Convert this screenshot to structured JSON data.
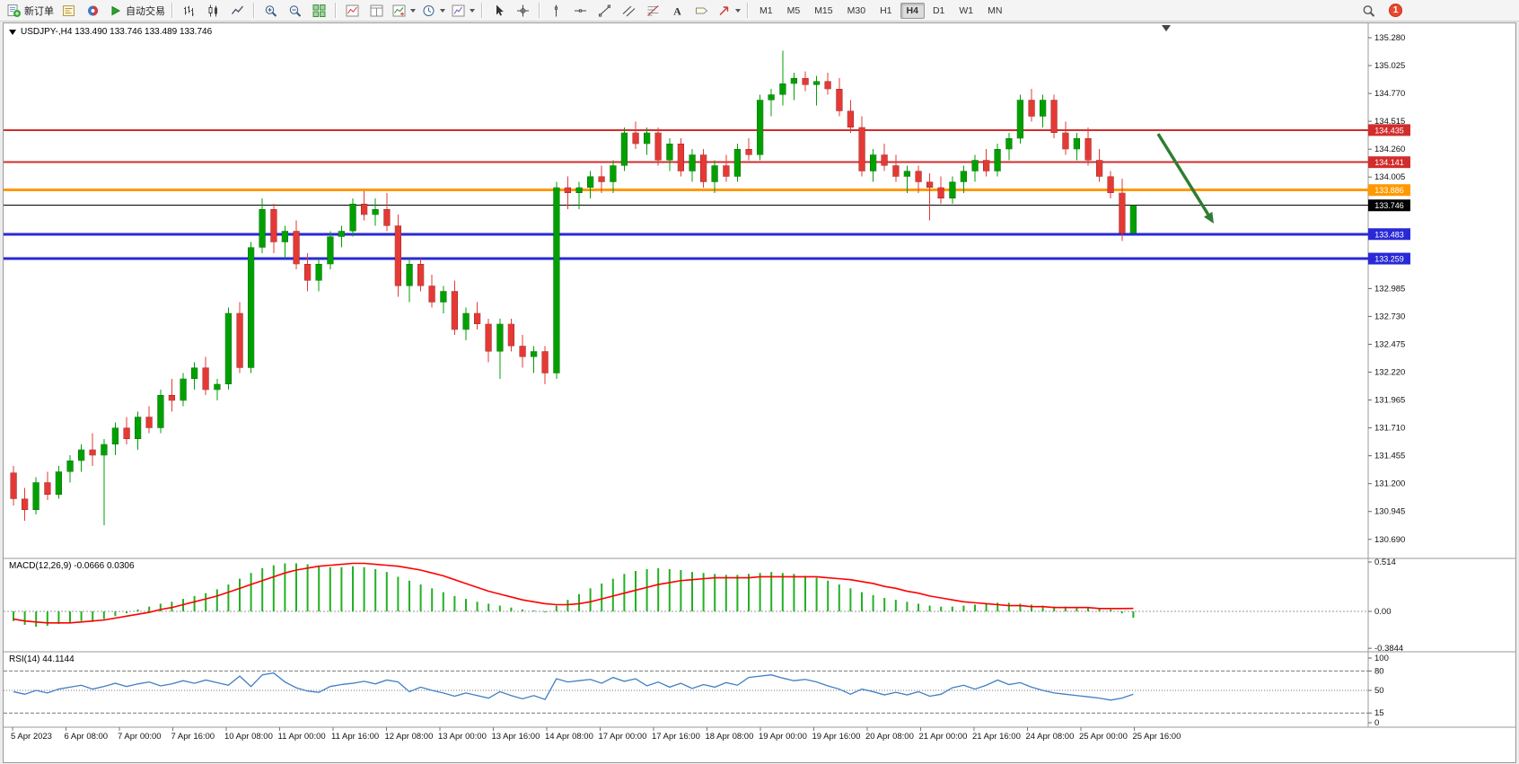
{
  "toolbar": {
    "badge": "1",
    "timeframes": [
      "M1",
      "M5",
      "M15",
      "M30",
      "H1",
      "H4",
      "D1",
      "W1",
      "MN"
    ],
    "active_timeframe": "H4",
    "groups": [
      {
        "items": [
          {
            "name": "new-order-button",
            "icon": "new-order-icon",
            "label": "新订单"
          },
          {
            "name": "market-depth-button",
            "icon": "market-depth-icon"
          },
          {
            "name": "community-button",
            "icon": "community-icon"
          },
          {
            "name": "auto-trading-button",
            "icon": "autotrade-icon",
            "label": "自动交易"
          }
        ]
      },
      {
        "items": [
          {
            "name": "bar-chart-button",
            "icon": "bar-chart-icon"
          },
          {
            "name": "candlestick-chart-button",
            "icon": "candlestick-icon"
          },
          {
            "name": "line-chart-button",
            "icon": "line-chart-icon"
          }
        ]
      },
      {
        "items": [
          {
            "name": "zoom-in-button",
            "icon": "zoom-in-icon"
          },
          {
            "name": "zoom-out-button",
            "icon": "zoom-out-icon"
          },
          {
            "name": "tile-windows-button",
            "icon": "tile-windows-icon"
          }
        ]
      },
      {
        "items": [
          {
            "name": "indicator-window-button",
            "icon": "indicator-window-icon"
          },
          {
            "name": "data-window-button",
            "icon": "data-window-icon"
          },
          {
            "name": "add-indicator-button",
            "icon": "add-indicator-icon",
            "caret": true
          },
          {
            "name": "period-button",
            "icon": "period-icon",
            "caret": true
          },
          {
            "name": "template-button",
            "icon": "template-icon",
            "caret": true
          }
        ]
      },
      {
        "items": [
          {
            "name": "cursor-button",
            "icon": "cursor-icon"
          },
          {
            "name": "crosshair-button",
            "icon": "crosshair-icon"
          }
        ]
      },
      {
        "items": [
          {
            "name": "vline-button",
            "icon": "vline-icon"
          },
          {
            "name": "hline-button",
            "icon": "hline-icon"
          },
          {
            "name": "trendline-button",
            "icon": "trendline-icon"
          },
          {
            "name": "channel-button",
            "icon": "channel-icon"
          },
          {
            "name": "fibonacci-button",
            "icon": "fibonacci-icon"
          },
          {
            "name": "text-button",
            "icon": "text-icon",
            "glyph": "A"
          },
          {
            "name": "label-button",
            "icon": "label-icon"
          },
          {
            "name": "arrow-tools-button",
            "icon": "arrow-tools-icon",
            "caret": true
          }
        ]
      }
    ]
  },
  "chart_data": {
    "type": "candlestick",
    "symbol": "USDJPY-",
    "timeframe": "H4",
    "title": "USDJPY-,H4 133.490 133.746 133.489 133.746",
    "price_range": {
      "max": 135.28,
      "min": 130.68
    },
    "price_axis_labels": [
      "135.280",
      "135.025",
      "134.770",
      "134.515",
      "134.260",
      "134.005",
      "132.985",
      "132.730",
      "132.475",
      "132.220",
      "131.965",
      "131.710",
      "131.455",
      "131.200",
      "130.945",
      "130.690"
    ],
    "levels": [
      {
        "price": 134.435,
        "label": "134.435",
        "color": "#d22d2d",
        "width": 2
      },
      {
        "price": 134.141,
        "label": "134.141",
        "color": "#d22d2d",
        "width": 2
      },
      {
        "price": 133.886,
        "label": "133.886",
        "color": "#ff9900",
        "width": 3
      },
      {
        "price": 133.746,
        "label": "133.746",
        "color": "#000000",
        "width": 1,
        "current": true
      },
      {
        "price": 133.483,
        "label": "133.483",
        "color": "#2929d6",
        "width": 3
      },
      {
        "price": 133.259,
        "label": "133.259",
        "color": "#2929d6",
        "width": 3
      }
    ],
    "colors": {
      "up": "#00a000",
      "down": "#e53935",
      "macd_hist": "#22b122",
      "macd_signal": "#ff0000",
      "rsi": "#3f7fc4"
    },
    "arrow": {
      "color": "#2e7d32",
      "from_price": 134.4,
      "to_price": 133.58
    },
    "time_labels": [
      "5 Apr 2023",
      "6 Apr 08:00",
      "7 Apr 00:00",
      "7 Apr 16:00",
      "10 Apr 08:00",
      "11 Apr 00:00",
      "11 Apr 16:00",
      "12 Apr 08:00",
      "13 Apr 00:00",
      "13 Apr 16:00",
      "14 Apr 08:00",
      "17 Apr 00:00",
      "17 Apr 16:00",
      "18 Apr 08:00",
      "19 Apr 00:00",
      "19 Apr 16:00",
      "20 Apr 08:00",
      "21 Apr 00:00",
      "21 Apr 16:00",
      "24 Apr 08:00",
      "25 Apr 00:00",
      "25 Apr 16:00"
    ],
    "candles": [
      [
        131.3,
        131.36,
        131.0,
        131.06
      ],
      [
        131.06,
        131.16,
        130.86,
        130.96
      ],
      [
        130.96,
        131.26,
        130.92,
        131.21
      ],
      [
        131.21,
        131.31,
        131.05,
        131.1
      ],
      [
        131.1,
        131.36,
        131.06,
        131.31
      ],
      [
        131.31,
        131.46,
        131.21,
        131.41
      ],
      [
        131.41,
        131.56,
        131.31,
        131.51
      ],
      [
        131.51,
        131.66,
        131.36,
        131.46
      ],
      [
        131.46,
        131.61,
        130.82,
        131.56
      ],
      [
        131.56,
        131.76,
        131.46,
        131.71
      ],
      [
        131.71,
        131.81,
        131.56,
        131.61
      ],
      [
        131.61,
        131.86,
        131.51,
        131.81
      ],
      [
        131.81,
        131.91,
        131.66,
        131.71
      ],
      [
        131.71,
        132.06,
        131.66,
        132.01
      ],
      [
        132.01,
        132.16,
        131.86,
        131.96
      ],
      [
        131.96,
        132.21,
        131.91,
        132.16
      ],
      [
        132.16,
        132.31,
        132.06,
        132.26
      ],
      [
        132.26,
        132.36,
        132.01,
        132.06
      ],
      [
        132.06,
        132.16,
        131.96,
        132.11
      ],
      [
        132.11,
        132.81,
        132.06,
        132.76
      ],
      [
        132.76,
        132.86,
        132.21,
        132.26
      ],
      [
        132.26,
        133.41,
        132.21,
        133.36
      ],
      [
        133.36,
        133.81,
        133.31,
        133.71
      ],
      [
        133.71,
        133.76,
        133.31,
        133.41
      ],
      [
        133.41,
        133.56,
        133.26,
        133.51
      ],
      [
        133.51,
        133.61,
        133.16,
        133.21
      ],
      [
        133.21,
        133.31,
        132.96,
        133.06
      ],
      [
        133.06,
        133.26,
        132.96,
        133.21
      ],
      [
        133.21,
        133.51,
        133.16,
        133.46
      ],
      [
        133.46,
        133.56,
        133.36,
        133.51
      ],
      [
        133.51,
        133.81,
        133.46,
        133.76
      ],
      [
        133.76,
        133.88,
        133.61,
        133.66
      ],
      [
        133.66,
        133.81,
        133.56,
        133.71
      ],
      [
        133.71,
        133.86,
        133.51,
        133.56
      ],
      [
        133.56,
        133.66,
        132.91,
        133.01
      ],
      [
        133.01,
        133.26,
        132.86,
        133.21
      ],
      [
        133.21,
        133.26,
        132.96,
        133.01
      ],
      [
        133.01,
        133.11,
        132.81,
        132.86
      ],
      [
        132.86,
        133.01,
        132.76,
        132.96
      ],
      [
        132.96,
        133.06,
        132.56,
        132.61
      ],
      [
        132.61,
        132.81,
        132.51,
        132.76
      ],
      [
        132.76,
        132.86,
        132.61,
        132.66
      ],
      [
        132.66,
        132.71,
        132.31,
        132.41
      ],
      [
        132.41,
        132.71,
        132.16,
        132.66
      ],
      [
        132.66,
        132.71,
        132.41,
        132.46
      ],
      [
        132.46,
        132.56,
        132.26,
        132.36
      ],
      [
        132.36,
        132.46,
        132.21,
        132.41
      ],
      [
        132.41,
        132.46,
        132.11,
        132.21
      ],
      [
        132.21,
        133.96,
        132.16,
        133.91
      ],
      [
        133.91,
        134.01,
        133.71,
        133.86
      ],
      [
        133.86,
        133.96,
        133.71,
        133.91
      ],
      [
        133.91,
        134.06,
        133.81,
        134.01
      ],
      [
        134.01,
        134.11,
        133.86,
        133.96
      ],
      [
        133.96,
        134.16,
        133.86,
        134.11
      ],
      [
        134.11,
        134.46,
        134.06,
        134.41
      ],
      [
        134.41,
        134.51,
        134.26,
        134.31
      ],
      [
        134.31,
        134.46,
        134.21,
        134.41
      ],
      [
        134.41,
        134.46,
        134.11,
        134.16
      ],
      [
        134.16,
        134.36,
        134.06,
        134.31
      ],
      [
        134.31,
        134.36,
        134.01,
        134.06
      ],
      [
        134.06,
        134.26,
        133.96,
        134.21
      ],
      [
        134.21,
        134.26,
        133.91,
        133.96
      ],
      [
        133.96,
        134.16,
        133.86,
        134.11
      ],
      [
        134.11,
        134.21,
        133.96,
        134.01
      ],
      [
        134.01,
        134.31,
        133.96,
        134.26
      ],
      [
        134.26,
        134.36,
        134.16,
        134.21
      ],
      [
        134.21,
        134.76,
        134.16,
        134.71
      ],
      [
        134.71,
        134.81,
        134.56,
        134.76
      ],
      [
        134.76,
        135.16,
        134.66,
        134.86
      ],
      [
        134.86,
        134.96,
        134.71,
        134.91
      ],
      [
        134.91,
        134.97,
        134.79,
        134.85
      ],
      [
        134.85,
        134.93,
        134.66,
        134.88
      ],
      [
        134.88,
        134.96,
        134.76,
        134.81
      ],
      [
        134.81,
        134.91,
        134.56,
        134.61
      ],
      [
        134.61,
        134.71,
        134.41,
        134.46
      ],
      [
        134.46,
        134.56,
        134.01,
        134.06
      ],
      [
        134.06,
        134.26,
        133.96,
        134.21
      ],
      [
        134.21,
        134.31,
        134.06,
        134.11
      ],
      [
        134.11,
        134.21,
        133.96,
        134.01
      ],
      [
        134.01,
        134.11,
        133.86,
        134.06
      ],
      [
        134.06,
        134.11,
        133.86,
        133.96
      ],
      [
        133.96,
        134.04,
        133.61,
        133.91
      ],
      [
        133.91,
        134.01,
        133.76,
        133.81
      ],
      [
        133.81,
        134.01,
        133.76,
        133.96
      ],
      [
        133.96,
        134.11,
        133.86,
        134.06
      ],
      [
        134.06,
        134.21,
        133.96,
        134.16
      ],
      [
        134.16,
        134.26,
        134.01,
        134.06
      ],
      [
        134.06,
        134.31,
        134.01,
        134.26
      ],
      [
        134.26,
        134.41,
        134.16,
        134.36
      ],
      [
        134.36,
        134.76,
        134.31,
        134.71
      ],
      [
        134.71,
        134.81,
        134.51,
        134.56
      ],
      [
        134.56,
        134.76,
        134.46,
        134.71
      ],
      [
        134.71,
        134.76,
        134.36,
        134.41
      ],
      [
        134.41,
        134.51,
        134.21,
        134.26
      ],
      [
        134.26,
        134.41,
        134.16,
        134.36
      ],
      [
        134.36,
        134.46,
        134.11,
        134.16
      ],
      [
        134.16,
        134.26,
        133.96,
        134.01
      ],
      [
        134.01,
        134.06,
        133.81,
        133.86
      ],
      [
        133.86,
        133.99,
        133.42,
        133.49
      ],
      [
        133.49,
        133.746,
        133.489,
        133.746
      ]
    ],
    "indicators": {
      "macd": {
        "label": "MACD(12,26,9) -0.0666 0.0306",
        "axis": [
          {
            "value": 0.514,
            "text": "0.514"
          },
          {
            "value": 0,
            "text": "0.00"
          },
          {
            "value": -0.3844,
            "text": "-0.3844"
          }
        ],
        "histogram": [
          -0.1,
          -0.14,
          -0.16,
          -0.15,
          -0.13,
          -0.12,
          -0.1,
          -0.11,
          -0.08,
          -0.05,
          -0.02,
          0.02,
          0.05,
          0.08,
          0.1,
          0.13,
          0.16,
          0.19,
          0.23,
          0.28,
          0.34,
          0.4,
          0.45,
          0.48,
          0.5,
          0.5,
          0.49,
          0.47,
          0.46,
          0.46,
          0.47,
          0.46,
          0.44,
          0.41,
          0.36,
          0.32,
          0.28,
          0.24,
          0.2,
          0.16,
          0.13,
          0.1,
          0.08,
          0.06,
          0.04,
          0.02,
          0.01,
          -0.01,
          0.06,
          0.12,
          0.18,
          0.24,
          0.29,
          0.34,
          0.39,
          0.42,
          0.44,
          0.45,
          0.44,
          0.43,
          0.41,
          0.4,
          0.39,
          0.38,
          0.38,
          0.39,
          0.4,
          0.41,
          0.4,
          0.39,
          0.37,
          0.35,
          0.32,
          0.28,
          0.24,
          0.2,
          0.17,
          0.14,
          0.12,
          0.1,
          0.08,
          0.06,
          0.05,
          0.05,
          0.06,
          0.07,
          0.08,
          0.09,
          0.09,
          0.08,
          0.07,
          0.06,
          0.05,
          0.05,
          0.04,
          0.04,
          0.03,
          0.02,
          -0.02,
          -0.0666
        ],
        "signal": [
          -0.08,
          -0.1,
          -0.11,
          -0.12,
          -0.12,
          -0.12,
          -0.11,
          -0.1,
          -0.09,
          -0.07,
          -0.05,
          -0.03,
          -0.01,
          0.02,
          0.04,
          0.07,
          0.1,
          0.13,
          0.16,
          0.2,
          0.24,
          0.28,
          0.32,
          0.36,
          0.4,
          0.43,
          0.45,
          0.47,
          0.48,
          0.49,
          0.5,
          0.5,
          0.49,
          0.48,
          0.47,
          0.45,
          0.43,
          0.4,
          0.37,
          0.33,
          0.29,
          0.25,
          0.21,
          0.18,
          0.15,
          0.12,
          0.1,
          0.08,
          0.07,
          0.07,
          0.08,
          0.1,
          0.13,
          0.16,
          0.19,
          0.22,
          0.25,
          0.28,
          0.3,
          0.32,
          0.33,
          0.34,
          0.35,
          0.35,
          0.35,
          0.35,
          0.36,
          0.36,
          0.36,
          0.36,
          0.36,
          0.36,
          0.35,
          0.34,
          0.33,
          0.31,
          0.29,
          0.26,
          0.24,
          0.21,
          0.19,
          0.16,
          0.14,
          0.12,
          0.1,
          0.09,
          0.08,
          0.07,
          0.06,
          0.06,
          0.05,
          0.05,
          0.04,
          0.04,
          0.04,
          0.04,
          0.03,
          0.03,
          0.03,
          0.031
        ]
      },
      "rsi": {
        "label": "RSI(14) 44.1144",
        "levels": [
          80,
          50,
          15
        ],
        "axis": [
          {
            "value": 100,
            "text": "100"
          },
          {
            "value": 80,
            "text": "80"
          },
          {
            "value": 50,
            "text": "50"
          },
          {
            "value": 15,
            "text": "15"
          },
          {
            "value": 0,
            "text": "0"
          }
        ],
        "values": [
          48,
          44,
          50,
          46,
          52,
          55,
          58,
          52,
          56,
          61,
          56,
          60,
          63,
          57,
          60,
          65,
          61,
          66,
          62,
          58,
          72,
          56,
          74,
          77,
          63,
          54,
          49,
          47,
          56,
          59,
          61,
          64,
          60,
          66,
          63,
          48,
          55,
          50,
          46,
          41,
          46,
          42,
          38,
          48,
          42,
          37,
          42,
          36,
          68,
          63,
          65,
          67,
          61,
          70,
          64,
          68,
          57,
          63,
          55,
          61,
          53,
          59,
          55,
          62,
          58,
          70,
          72,
          74,
          69,
          65,
          67,
          63,
          57,
          52,
          44,
          52,
          48,
          43,
          47,
          43,
          48,
          41,
          44,
          54,
          58,
          52,
          58,
          66,
          59,
          62,
          55,
          50,
          46,
          44,
          42,
          40,
          38,
          35,
          38,
          44.11
        ]
      }
    }
  }
}
